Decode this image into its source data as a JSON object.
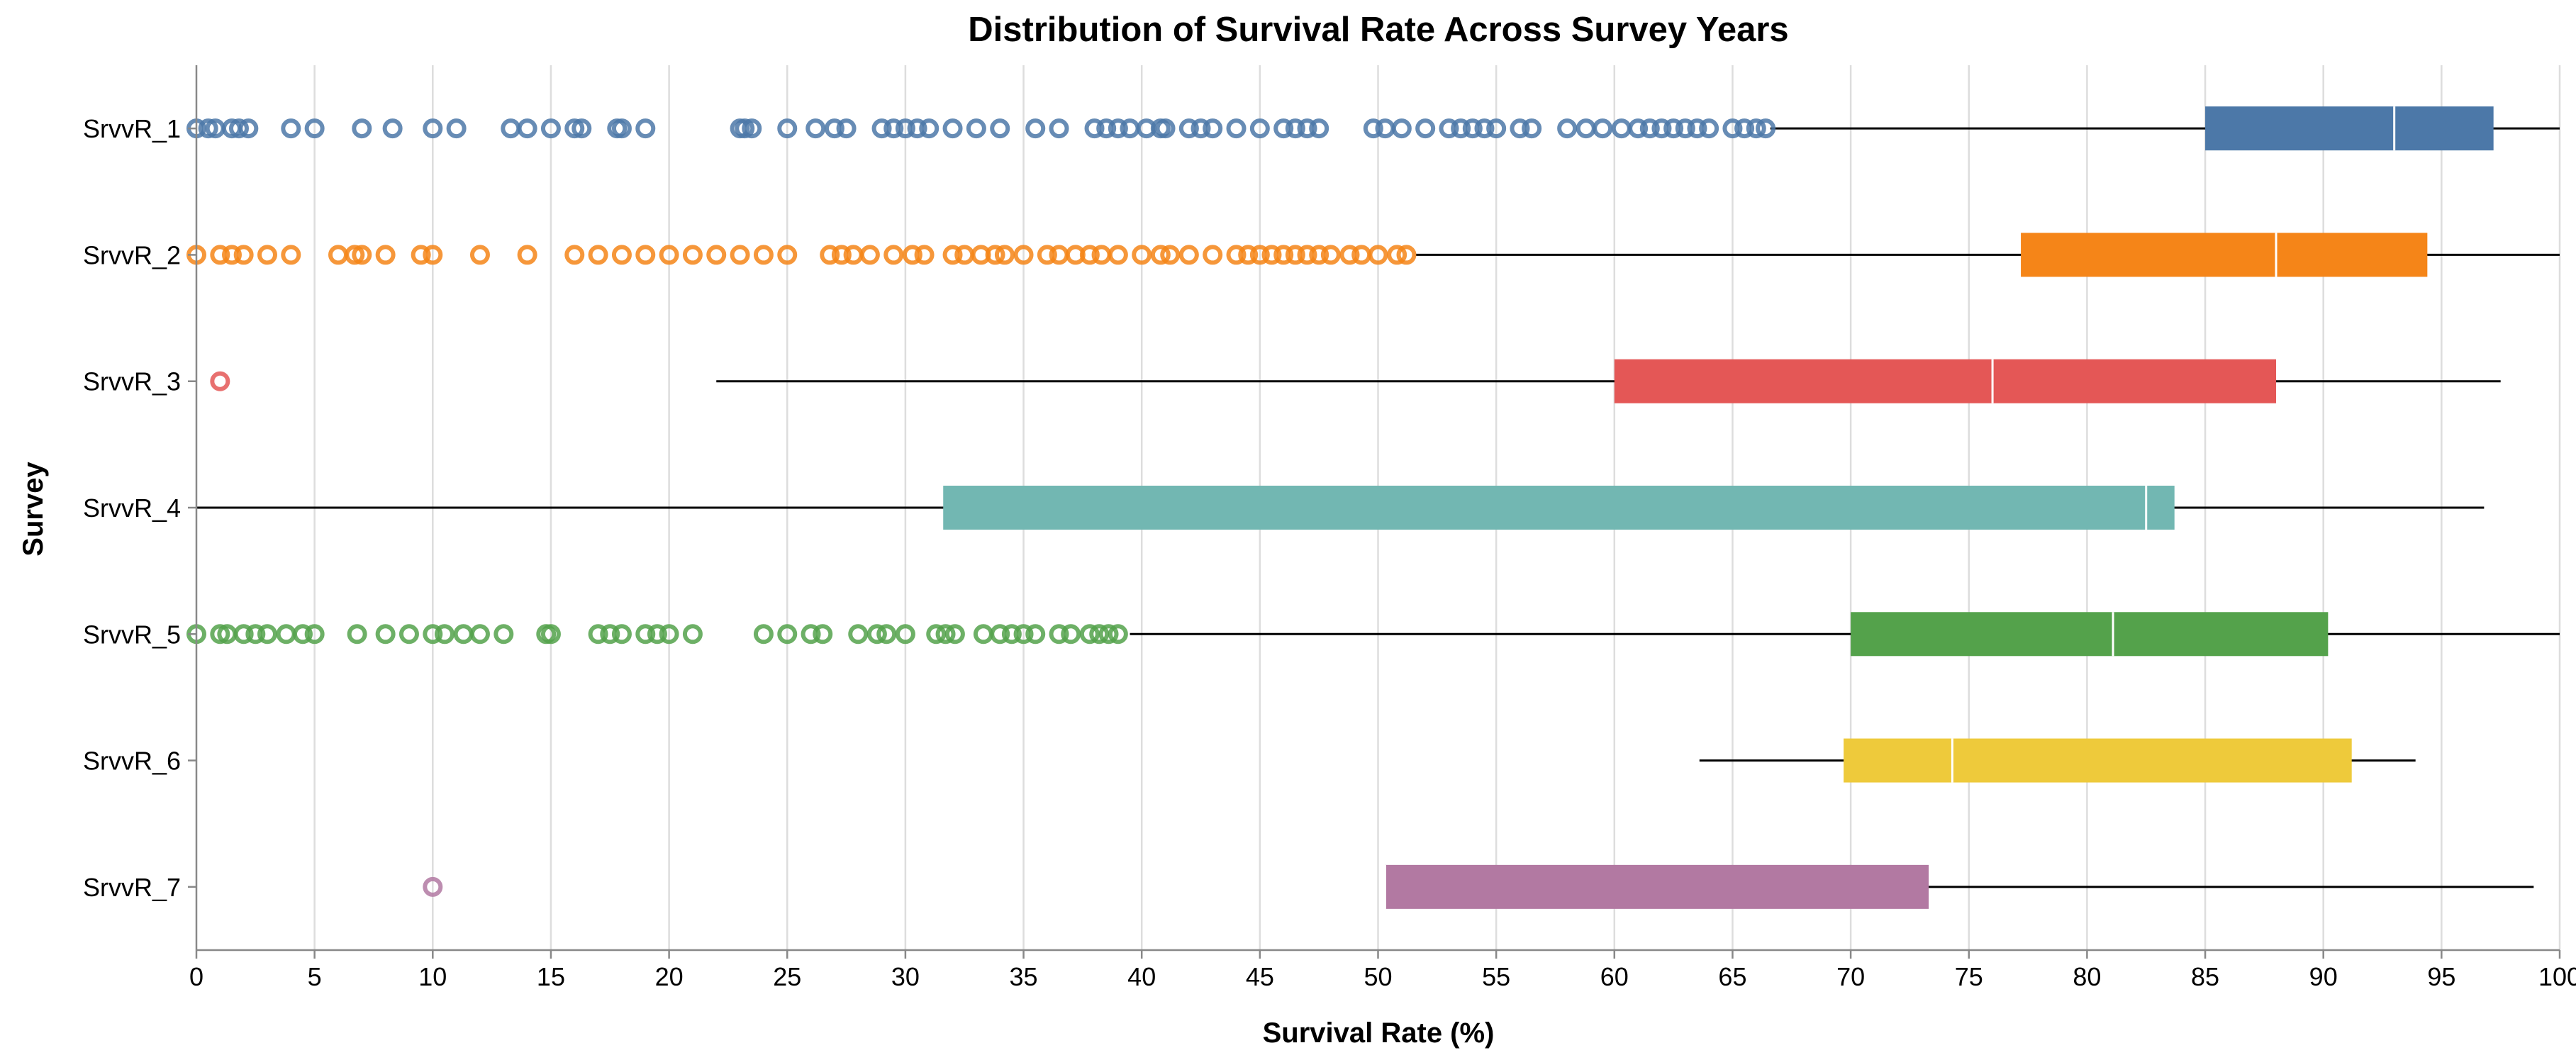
{
  "chart_data": {
    "type": "boxplot",
    "title": "Distribution of Survival Rate Across Survey Years",
    "xlabel": "Survival Rate (%)",
    "ylabel": "Survey",
    "xlim": [
      0,
      100
    ],
    "x_ticks": [
      0,
      5,
      10,
      15,
      20,
      25,
      30,
      35,
      40,
      45,
      50,
      55,
      60,
      65,
      70,
      75,
      80,
      85,
      90,
      95,
      100
    ],
    "grid": "vertical",
    "orientation": "horizontal",
    "series": [
      {
        "name": "SrvvR_1",
        "color": "#4c78a8",
        "whisker_low": 66.6,
        "q1": 85.0,
        "median": 93.0,
        "q3": 97.2,
        "whisker_high": 100,
        "outliers": [
          0,
          0.5,
          0.8,
          1.5,
          1.8,
          2.2,
          4.0,
          5.0,
          7.0,
          8.3,
          10.0,
          11.0,
          13.3,
          14.0,
          15.0,
          16.0,
          16.3,
          17.8,
          18.0,
          19.0,
          23.0,
          23.2,
          23.5,
          25.0,
          26.2,
          27.0,
          27.5,
          29.0,
          29.5,
          30.0,
          30.5,
          31.0,
          32.0,
          33.0,
          34.0,
          35.5,
          36.5,
          38.0,
          38.5,
          39.0,
          39.5,
          40.2,
          40.8,
          41.0,
          42.0,
          42.5,
          43.0,
          44.0,
          45.0,
          46.0,
          46.5,
          47.0,
          47.5,
          49.8,
          50.3,
          51.0,
          52.0,
          53.0,
          53.5,
          54.0,
          54.5,
          55.0,
          56.0,
          56.5,
          58.0,
          58.8,
          59.5,
          60.3,
          61.0,
          61.5,
          62.0,
          62.5,
          63.0,
          63.5,
          64.0,
          65.0,
          65.5,
          66.0,
          66.4
        ]
      },
      {
        "name": "SrvvR_2",
        "color": "#f58518",
        "whisker_low": 51.6,
        "q1": 77.2,
        "median": 88.0,
        "q3": 94.4,
        "whisker_high": 100,
        "outliers": [
          0,
          1.0,
          1.5,
          2.0,
          3.0,
          4.0,
          6.0,
          6.7,
          7.0,
          8.0,
          9.5,
          10.0,
          12.0,
          14.0,
          16.0,
          17.0,
          18.0,
          19.0,
          20.0,
          21.0,
          22.0,
          23.0,
          24.0,
          25.0,
          26.8,
          27.3,
          27.8,
          28.5,
          29.5,
          30.3,
          30.8,
          32.0,
          32.5,
          33.2,
          33.8,
          34.2,
          35.0,
          36.0,
          36.5,
          37.2,
          37.8,
          38.3,
          39.0,
          40.0,
          40.8,
          41.2,
          42.0,
          43.0,
          44.0,
          44.5,
          45.0,
          45.5,
          46.0,
          46.5,
          47.0,
          47.5,
          48.0,
          48.8,
          49.3,
          50.0,
          50.8,
          51.2
        ]
      },
      {
        "name": "SrvvR_3",
        "color": "#e45756",
        "whisker_low": 22.0,
        "q1": 60.0,
        "median": 76.0,
        "q3": 88.0,
        "whisker_high": 97.5,
        "outliers": [
          1.0
        ]
      },
      {
        "name": "SrvvR_4",
        "color": "#72b7b2",
        "whisker_low": 0,
        "q1": 31.6,
        "median": 82.5,
        "q3": 83.7,
        "whisker_high": 96.8,
        "outliers": []
      },
      {
        "name": "SrvvR_5",
        "color": "#54a24b",
        "whisker_low": 39.5,
        "q1": 70.0,
        "median": 81.1,
        "q3": 90.2,
        "whisker_high": 100,
        "outliers": [
          0,
          1.0,
          1.3,
          2.0,
          2.5,
          3.0,
          3.8,
          4.5,
          5.0,
          6.8,
          8.0,
          9.0,
          10.0,
          10.5,
          11.3,
          12.0,
          13.0,
          14.8,
          15.0,
          17.0,
          17.5,
          18.0,
          19.0,
          19.5,
          20.0,
          21.0,
          24.0,
          25.0,
          26.0,
          26.5,
          28.0,
          28.8,
          29.2,
          30.0,
          31.3,
          31.7,
          32.1,
          33.3,
          34.0,
          34.5,
          35.0,
          35.5,
          36.5,
          37.0,
          37.8,
          38.2,
          38.6,
          39.0
        ]
      },
      {
        "name": "SrvvR_6",
        "color": "#eeca3b",
        "whisker_low": 63.6,
        "q1": 69.7,
        "median": 74.3,
        "q3": 91.2,
        "whisker_high": 93.9,
        "outliers": []
      },
      {
        "name": "SrvvR_7",
        "color": "#b279a2",
        "whisker_low": 50.3,
        "q1": 50.3,
        "median": 50.3,
        "q3": 73.3,
        "whisker_high": 98.9,
        "outliers": [
          10.0
        ]
      }
    ]
  }
}
